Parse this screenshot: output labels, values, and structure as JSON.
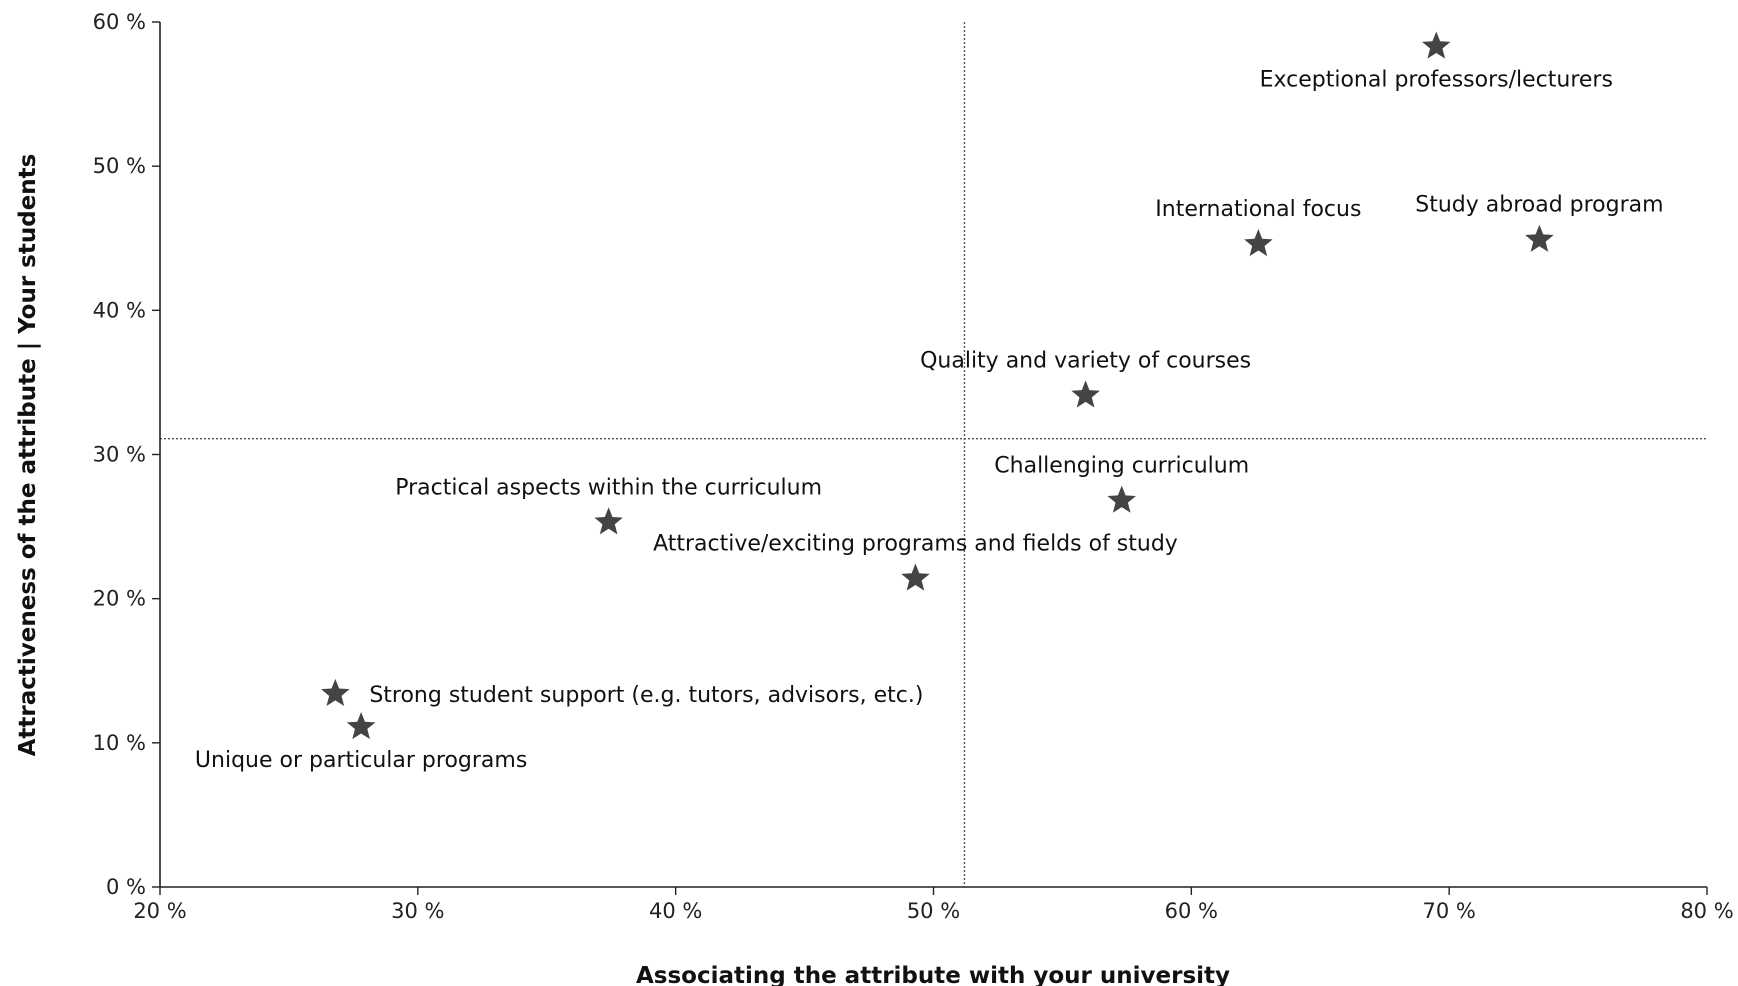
{
  "chart_data": {
    "type": "scatter",
    "xlabel": "Associating the attribute with your university",
    "ylabel": "Attractiveness of the attribute | Your students",
    "xlim": [
      20,
      80
    ],
    "ylim": [
      0,
      60
    ],
    "x_ticks": [
      20,
      30,
      40,
      50,
      60,
      70,
      80
    ],
    "y_ticks": [
      0,
      10,
      20,
      30,
      40,
      50,
      60
    ],
    "tick_suffix": " %",
    "grid": false,
    "reference_lines": {
      "x": 51.2,
      "y": 31.1,
      "style": "dotted"
    },
    "marker": "star",
    "marker_color": "#444444",
    "points": [
      {
        "label": "Exceptional professors/lecturers",
        "x": 69.5,
        "y": 58.3,
        "label_pos": "below"
      },
      {
        "label": "International focus",
        "x": 62.6,
        "y": 44.6,
        "label_pos": "above"
      },
      {
        "label": "Study abroad program",
        "x": 73.5,
        "y": 44.9,
        "label_pos": "above"
      },
      {
        "label": "Quality and variety of courses",
        "x": 55.9,
        "y": 34.1,
        "label_pos": "above"
      },
      {
        "label": "Challenging curriculum",
        "x": 57.3,
        "y": 26.8,
        "label_pos": "above"
      },
      {
        "label": "Practical aspects within the curriculum",
        "x": 37.4,
        "y": 25.3,
        "label_pos": "above"
      },
      {
        "label": "Attractive/exciting programs and fields of study",
        "x": 49.3,
        "y": 21.4,
        "label_pos": "above"
      },
      {
        "label": "Strong student support (e.g. tutors, advisors, etc.)",
        "x": 26.8,
        "y": 13.4,
        "label_pos": "right"
      },
      {
        "label": "Unique or particular programs",
        "x": 27.8,
        "y": 11.1,
        "label_pos": "below"
      }
    ]
  }
}
